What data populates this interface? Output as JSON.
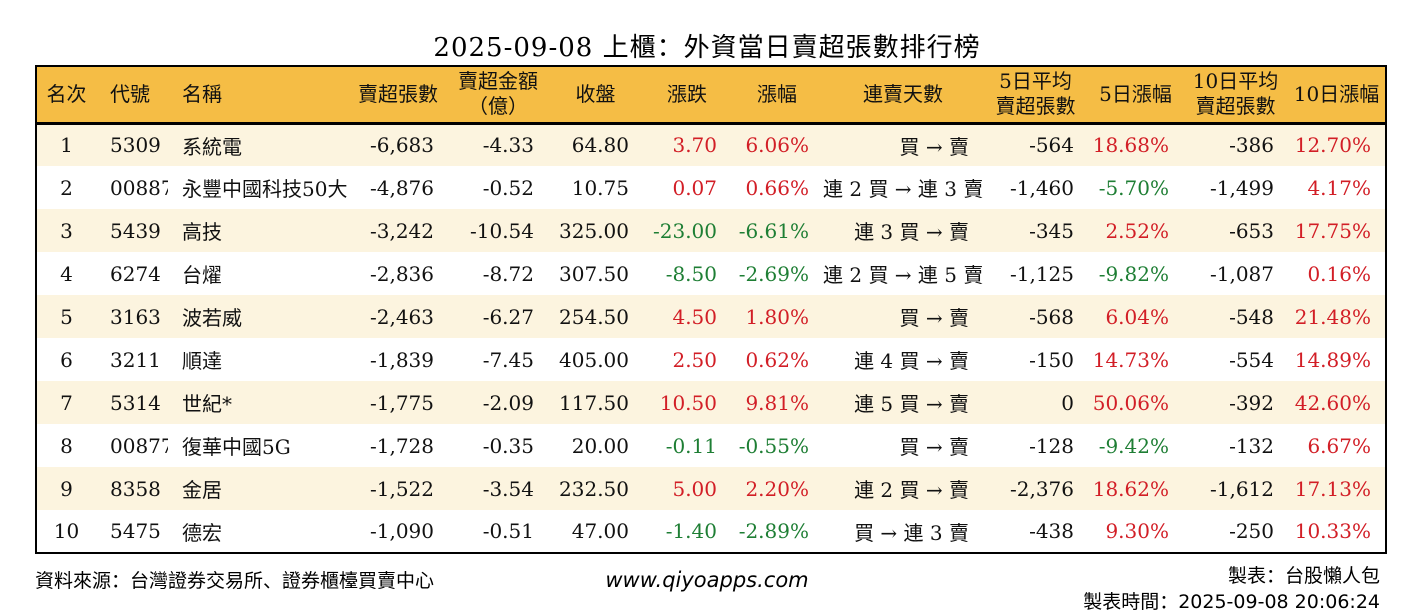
{
  "title": "2025-09-08 上櫃：外資當日賣超張數排行榜",
  "colors": {
    "header_bg": "#F5BD45",
    "row_odd_bg": "#FCF4DF",
    "row_even_bg": "#FFFFFF",
    "up_red": "#D21E26",
    "down_green": "#1E7E34",
    "border": "#000000"
  },
  "chart_data": {
    "type": "table",
    "columns": [
      "名次",
      "代號",
      "名稱",
      "賣超張數",
      "賣超金額\n（億）",
      "收盤",
      "漲跌",
      "漲幅",
      "連賣天數",
      "5日平均\n賣超張數",
      "5日漲幅",
      "10日平均\n賣超張數",
      "10日漲幅"
    ],
    "rows": [
      {
        "values": [
          "1",
          "5309",
          "系統電",
          "-6,683",
          "-4.33",
          "64.80",
          "3.70",
          "6.06%",
          "買 → 賣",
          "-564",
          "18.68%",
          "-386",
          "12.70%"
        ],
        "tones": [
          "",
          "",
          "",
          "",
          "",
          "",
          "up",
          "up",
          "",
          "",
          "up",
          "",
          "up"
        ]
      },
      {
        "values": [
          "2",
          "00887",
          "永豐中國科技50大",
          "-4,876",
          "-0.52",
          "10.75",
          "0.07",
          "0.66%",
          "連 2 買 → 連 3 賣",
          "-1,460",
          "-5.70%",
          "-1,499",
          "4.17%"
        ],
        "tones": [
          "",
          "",
          "",
          "",
          "",
          "",
          "up",
          "up",
          "",
          "",
          "down",
          "",
          "up"
        ]
      },
      {
        "values": [
          "3",
          "5439",
          "高技",
          "-3,242",
          "-10.54",
          "325.00",
          "-23.00",
          "-6.61%",
          "連 3 買 → 賣",
          "-345",
          "2.52%",
          "-653",
          "17.75%"
        ],
        "tones": [
          "",
          "",
          "",
          "",
          "",
          "",
          "down",
          "down",
          "",
          "",
          "up",
          "",
          "up"
        ]
      },
      {
        "values": [
          "4",
          "6274",
          "台燿",
          "-2,836",
          "-8.72",
          "307.50",
          "-8.50",
          "-2.69%",
          "連 2 買 → 連 5 賣",
          "-1,125",
          "-9.82%",
          "-1,087",
          "0.16%"
        ],
        "tones": [
          "",
          "",
          "",
          "",
          "",
          "",
          "down",
          "down",
          "",
          "",
          "down",
          "",
          "up"
        ]
      },
      {
        "values": [
          "5",
          "3163",
          "波若威",
          "-2,463",
          "-6.27",
          "254.50",
          "4.50",
          "1.80%",
          "買 → 賣",
          "-568",
          "6.04%",
          "-548",
          "21.48%"
        ],
        "tones": [
          "",
          "",
          "",
          "",
          "",
          "",
          "up",
          "up",
          "",
          "",
          "up",
          "",
          "up"
        ]
      },
      {
        "values": [
          "6",
          "3211",
          "順達",
          "-1,839",
          "-7.45",
          "405.00",
          "2.50",
          "0.62%",
          "連 4 買 → 賣",
          "-150",
          "14.73%",
          "-554",
          "14.89%"
        ],
        "tones": [
          "",
          "",
          "",
          "",
          "",
          "",
          "up",
          "up",
          "",
          "",
          "up",
          "",
          "up"
        ]
      },
      {
        "values": [
          "7",
          "5314",
          "世紀*",
          "-1,775",
          "-2.09",
          "117.50",
          "10.50",
          "9.81%",
          "連 5 買 → 賣",
          "0",
          "50.06%",
          "-392",
          "42.60%"
        ],
        "tones": [
          "",
          "",
          "",
          "",
          "",
          "",
          "up",
          "up",
          "",
          "",
          "up",
          "",
          "up"
        ]
      },
      {
        "values": [
          "8",
          "00877",
          "復華中國5G",
          "-1,728",
          "-0.35",
          "20.00",
          "-0.11",
          "-0.55%",
          "買 → 賣",
          "-128",
          "-9.42%",
          "-132",
          "6.67%"
        ],
        "tones": [
          "",
          "",
          "",
          "",
          "",
          "",
          "down",
          "down",
          "",
          "",
          "down",
          "",
          "up"
        ]
      },
      {
        "values": [
          "9",
          "8358",
          "金居",
          "-1,522",
          "-3.54",
          "232.50",
          "5.00",
          "2.20%",
          "連 2 買 → 賣",
          "-2,376",
          "18.62%",
          "-1,612",
          "17.13%"
        ],
        "tones": [
          "",
          "",
          "",
          "",
          "",
          "",
          "up",
          "up",
          "",
          "",
          "up",
          "",
          "up"
        ]
      },
      {
        "values": [
          "10",
          "5475",
          "德宏",
          "-1,090",
          "-0.51",
          "47.00",
          "-1.40",
          "-2.89%",
          "買 → 連 3 賣",
          "-438",
          "9.30%",
          "-250",
          "10.33%"
        ],
        "tones": [
          "",
          "",
          "",
          "",
          "",
          "",
          "down",
          "down",
          "",
          "",
          "up",
          "",
          "up"
        ]
      }
    ]
  },
  "footer": {
    "source": "資料來源：台灣證券交易所、證券櫃檯買賣中心",
    "website": "www.qiyoapps.com",
    "maker": "製表：台股懶人包",
    "made_time": "製表時間：2025-09-08 20:06:24"
  }
}
